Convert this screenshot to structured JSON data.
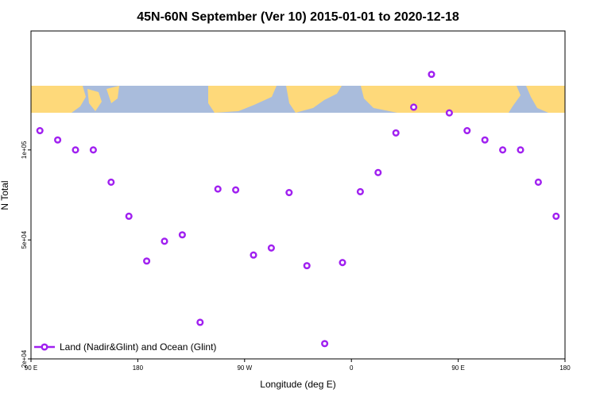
{
  "chart_data": {
    "type": "scatter",
    "title": "45N-60N September (Ver 10)   2015-01-01 to 2020-12-18",
    "xlabel": "Longitude (deg E)",
    "ylabel": "N Total",
    "y_scale": "log",
    "ylim": [
      20000,
      250000
    ],
    "x_ticks": [
      {
        "label": "90 E"
      },
      {
        "label": "180"
      },
      {
        "label": "90 W"
      },
      {
        "label": "0"
      },
      {
        "label": "90 E"
      },
      {
        "label": "180"
      }
    ],
    "y_ticks": [
      {
        "label": "1e+05",
        "value": 100000
      },
      {
        "label": "5e+04",
        "value": 50000
      },
      {
        "label": "2e+04",
        "value": 20000
      }
    ],
    "series": [
      {
        "name": "Land (Nadir&Glint) and Ocean (Glint)",
        "color": "#a020f0",
        "points": [
          {
            "x": 97.5,
            "y": 116000
          },
          {
            "x": 112.5,
            "y": 108000
          },
          {
            "x": 127.5,
            "y": 100000
          },
          {
            "x": 142.5,
            "y": 100000
          },
          {
            "x": 157.5,
            "y": 78000
          },
          {
            "x": 172.5,
            "y": 60000
          },
          {
            "x": 187.5,
            "y": 42500
          },
          {
            "x": 202.5,
            "y": 49500
          },
          {
            "x": 217.5,
            "y": 52000
          },
          {
            "x": 232.5,
            "y": 26500
          },
          {
            "x": 247.5,
            "y": 74000
          },
          {
            "x": 262.5,
            "y": 73500
          },
          {
            "x": 277.5,
            "y": 44500
          },
          {
            "x": 292.5,
            "y": 47000
          },
          {
            "x": 307.5,
            "y": 72000
          },
          {
            "x": 322.5,
            "y": 41000
          },
          {
            "x": 337.5,
            "y": 22500
          },
          {
            "x": 352.5,
            "y": 42000
          },
          {
            "x": 367.5,
            "y": 72500
          },
          {
            "x": 382.5,
            "y": 84000
          },
          {
            "x": 397.5,
            "y": 114000
          },
          {
            "x": 412.5,
            "y": 139000
          },
          {
            "x": 427.5,
            "y": 179000
          },
          {
            "x": 442.5,
            "y": 133000
          },
          {
            "x": 457.5,
            "y": 116000
          },
          {
            "x": 472.5,
            "y": 108000
          },
          {
            "x": 487.5,
            "y": 100000
          },
          {
            "x": 502.5,
            "y": 100000
          },
          {
            "x": 517.5,
            "y": 78000
          },
          {
            "x": 532.5,
            "y": 60000
          }
        ]
      }
    ],
    "legend_position": "bottom-left",
    "map_strip": {
      "ocean_color": "#a9bcdc",
      "land_color": "#fed97a"
    }
  }
}
